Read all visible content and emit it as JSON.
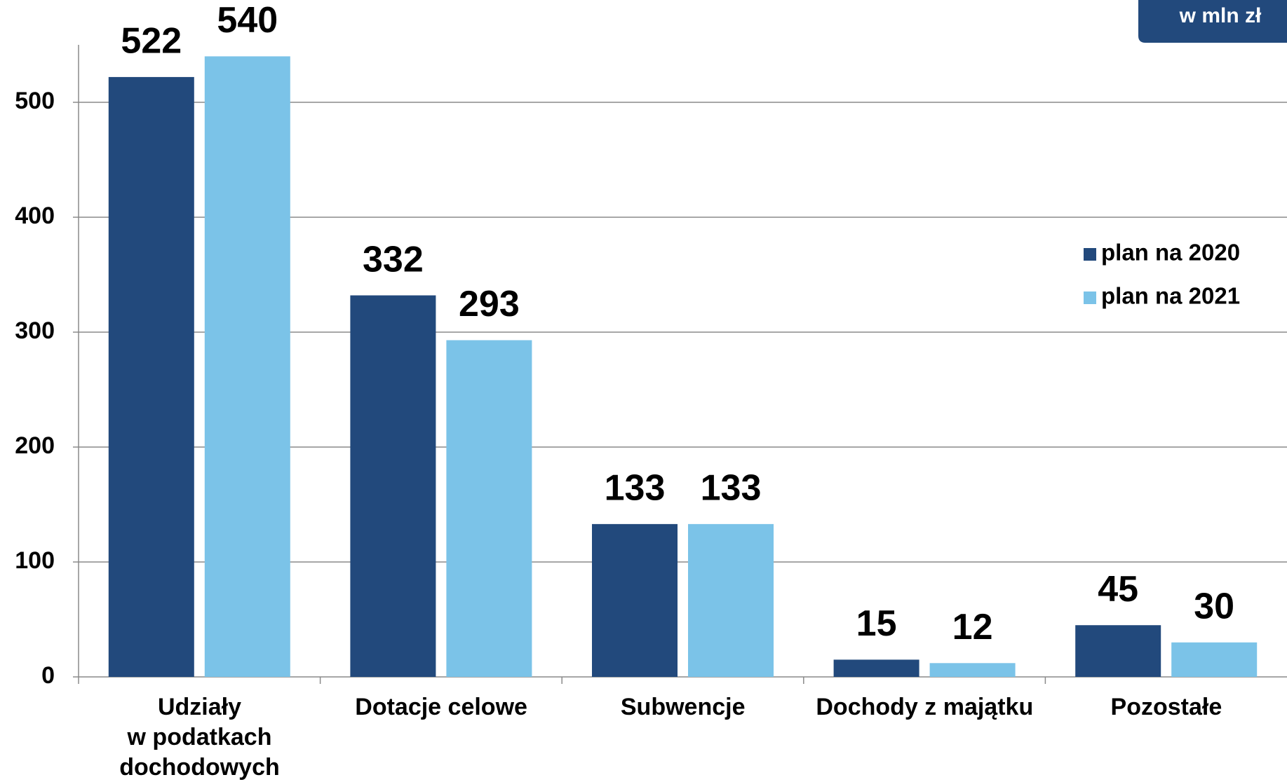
{
  "chart_data": {
    "type": "bar",
    "unit_label": "w mln zł",
    "categories": [
      "Udziały\nw podatkach\ndochodowych",
      "Dotacje celowe",
      "Subwencje",
      "Dochody z majątku",
      "Pozostałe"
    ],
    "series": [
      {
        "name": "plan na 2020",
        "color": "#22497c",
        "values": [
          522,
          332,
          133,
          15,
          45
        ]
      },
      {
        "name": "plan na 2021",
        "color": "#7bc3e8",
        "values": [
          540,
          293,
          133,
          12,
          30
        ]
      }
    ],
    "ylim": [
      0,
      550
    ],
    "yticks": [
      0,
      100,
      200,
      300,
      400,
      500
    ],
    "grid": true,
    "legend": "right"
  }
}
